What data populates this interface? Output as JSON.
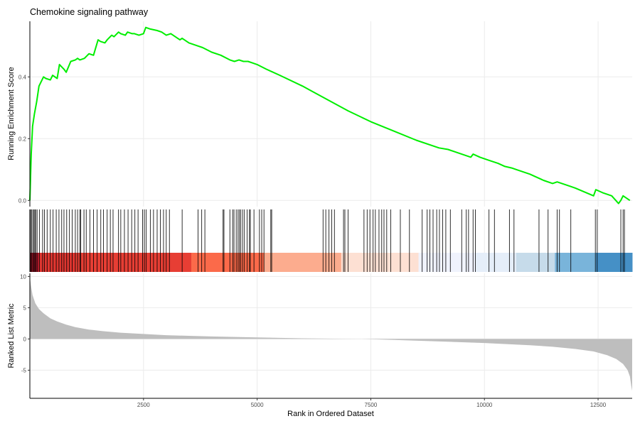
{
  "chart_data": {
    "type": "line",
    "title": "Chemokine signaling pathway",
    "xlabel": "Rank in Ordered Dataset",
    "xlim": [
      0,
      13250
    ],
    "x_ticks": [
      2500,
      5000,
      7500,
      10000,
      12500
    ],
    "x_tick_labels": [
      "2500",
      "5000",
      "7500",
      "10000",
      "12500"
    ],
    "grid": true,
    "panels": {
      "running_score": {
        "ylabel": "Running Enrichment Score",
        "ylim": [
          -0.02,
          0.58
        ],
        "y_ticks": [
          0.0,
          0.2,
          0.4
        ],
        "y_tick_labels": [
          "0.0",
          "0.2",
          "0.4"
        ],
        "color": "#00ee00",
        "series": [
          {
            "x": [
              0,
              30,
              60,
              100,
              150,
              200,
              300,
              350,
              450,
              500,
              600,
              650,
              750,
              800,
              900,
              1000,
              1050,
              1100,
              1200,
              1300,
              1400,
              1500,
              1550,
              1650,
              1700,
              1800,
              1850,
              1950,
              2000,
              2100,
              2150,
              2250,
              2300,
              2400,
              2500,
              2550,
              2650,
              2800,
              2900,
              3000,
              3100,
              3300,
              3350,
              3500,
              3700,
              3800,
              4000,
              4200,
              4400,
              4500,
              4600,
              4700,
              4800,
              4900,
              5000,
              5200,
              5500,
              6000,
              6500,
              7000,
              7500,
              8000,
              8500,
              9000,
              9200,
              9500,
              9700,
              9750,
              9900,
              10100,
              10300,
              10450,
              10600,
              10700,
              11000,
              11300,
              11500,
              11600,
              11900,
              12000,
              12400,
              12450,
              12600,
              12800,
              12950,
              13000,
              13050,
              13200
            ],
            "y": [
              0.0,
              0.15,
              0.24,
              0.28,
              0.32,
              0.37,
              0.4,
              0.395,
              0.39,
              0.405,
              0.395,
              0.44,
              0.425,
              0.415,
              0.45,
              0.455,
              0.46,
              0.455,
              0.46,
              0.475,
              0.47,
              0.52,
              0.515,
              0.51,
              0.52,
              0.535,
              0.53,
              0.545,
              0.54,
              0.535,
              0.545,
              0.54,
              0.54,
              0.535,
              0.54,
              0.56,
              0.555,
              0.55,
              0.545,
              0.535,
              0.54,
              0.52,
              0.525,
              0.51,
              0.5,
              0.495,
              0.48,
              0.47,
              0.455,
              0.45,
              0.455,
              0.45,
              0.45,
              0.445,
              0.44,
              0.425,
              0.405,
              0.37,
              0.33,
              0.29,
              0.255,
              0.225,
              0.195,
              0.17,
              0.165,
              0.15,
              0.14,
              0.15,
              0.14,
              0.13,
              0.12,
              0.11,
              0.105,
              0.1,
              0.085,
              0.065,
              0.055,
              0.06,
              0.045,
              0.04,
              0.015,
              0.035,
              0.025,
              0.015,
              -0.01,
              0.0,
              0.015,
              0.0
            ]
          }
        ]
      },
      "hits": {
        "color": "#000000",
        "positions": [
          15,
          40,
          65,
          90,
          110,
          130,
          160,
          210,
          280,
          320,
          380,
          450,
          510,
          580,
          640,
          700,
          750,
          810,
          870,
          930,
          1000,
          1050,
          1100,
          1120,
          1190,
          1240,
          1320,
          1400,
          1480,
          1560,
          1620,
          1700,
          1770,
          1830,
          1950,
          2000,
          2080,
          2160,
          2240,
          2310,
          2380,
          2480,
          2520,
          2560,
          2650,
          2720,
          2800,
          2870,
          2940,
          3000,
          3070,
          3350,
          3700,
          3780,
          3850,
          4250,
          4270,
          4400,
          4460,
          4490,
          4540,
          4580,
          4610,
          4640,
          4680,
          4720,
          4780,
          4830,
          4850,
          4930,
          5050,
          5100,
          5150,
          5300,
          5320,
          6450,
          6510,
          6580,
          6640,
          6700,
          6900,
          6930,
          7000,
          7350,
          7420,
          7480,
          7550,
          7600,
          7680,
          7740,
          7790,
          7850,
          7940,
          8150,
          8350,
          8630,
          8740,
          8800,
          8870,
          8950,
          9010,
          9080,
          9150,
          9250,
          9500,
          9600,
          9650,
          9750,
          9800,
          10100,
          10220,
          10550,
          10650,
          11200,
          11400,
          11600,
          11650,
          11900,
          12440,
          12480,
          13000,
          13050,
          13080
        ]
      },
      "color_bar": {
        "colors": [
          "#b2182b",
          "#df3630",
          "#e73e34",
          "#fb6a4a",
          "#fcac8e",
          "#fde0d3",
          "#f0f3fd",
          "#e5eef9",
          "#c6dbea",
          "#79b4da",
          "#4590c6"
        ],
        "breaks": [
          0,
          200,
          1000,
          3550,
          5150,
          6850,
          8550,
          9800,
          10700,
          11550,
          12450,
          13250
        ]
      },
      "ranked_metric": {
        "ylabel": "Ranked List Metric",
        "ylim": [
          -9.5,
          10.5
        ],
        "y_ticks": [
          -5,
          0,
          5,
          10
        ],
        "y_tick_labels": [
          "-5",
          "0",
          "5",
          "10"
        ],
        "fill": "#bebebe",
        "series": [
          {
            "x": [
              0,
              30,
              60,
              120,
              200,
              300,
              450,
              600,
              800,
              1000,
              1300,
              1600,
              2000,
              2500,
              3000,
              3500,
              4000,
              5000,
              6000,
              7000,
              7300,
              7500,
              8000,
              9000,
              10000,
              11000,
              11500,
              12000,
              12400,
              12700,
              12900,
              13050,
              13150,
              13200,
              13230,
              13250
            ],
            "y": [
              9.8,
              8.3,
              7.0,
              5.7,
              4.8,
              4.1,
              3.3,
              2.8,
              2.3,
              1.9,
              1.5,
              1.25,
              1.0,
              0.8,
              0.6,
              0.5,
              0.4,
              0.25,
              0.1,
              0.02,
              0.0,
              -0.05,
              -0.15,
              -0.4,
              -0.65,
              -1.0,
              -1.25,
              -1.6,
              -2.0,
              -2.6,
              -3.2,
              -4.0,
              -5.0,
              -6.0,
              -7.5,
              -8.3
            ]
          }
        ]
      }
    }
  }
}
